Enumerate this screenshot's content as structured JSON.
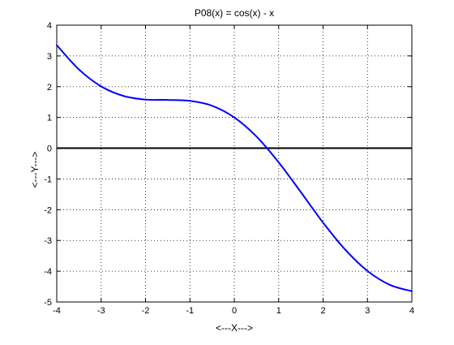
{
  "chart_data": {
    "type": "line",
    "title": "P08(x) = cos(x) - x",
    "xlabel": "<---X--->",
    "ylabel": "<---Y--->",
    "xlim": [
      -4,
      4
    ],
    "ylim": [
      -5,
      4
    ],
    "x_ticks": [
      -4,
      -3,
      -2,
      -1,
      0,
      1,
      2,
      3,
      4
    ],
    "y_ticks": [
      4,
      3,
      2,
      1,
      0,
      -1,
      -2,
      -3,
      -4,
      -5
    ],
    "x_tick_labels": [
      "-4",
      "-3",
      "-2",
      "-1",
      "0",
      "1",
      "2",
      "3",
      "4"
    ],
    "y_tick_labels": [
      "4",
      "3",
      "2",
      "1",
      "0",
      "-1",
      "-2",
      "-3",
      "-4",
      "-5"
    ],
    "grid": true,
    "series": [
      {
        "color": "#0000ff",
        "x": [
          -4.0,
          -3.5,
          -3.0,
          -2.5,
          -2.0,
          -1.5,
          -1.0,
          -0.5,
          0.0,
          0.5,
          1.0,
          1.5,
          2.0,
          2.5,
          3.0,
          3.5,
          4.0
        ],
        "y": [
          3.35,
          2.56,
          2.01,
          1.7,
          1.58,
          1.57,
          1.54,
          1.38,
          1.0,
          0.38,
          -0.46,
          -1.43,
          -2.42,
          -3.3,
          -3.99,
          -4.44,
          -4.65
        ]
      }
    ],
    "reference_lines": [
      {
        "axis": "y",
        "value": 0,
        "color": "#000000"
      }
    ]
  }
}
